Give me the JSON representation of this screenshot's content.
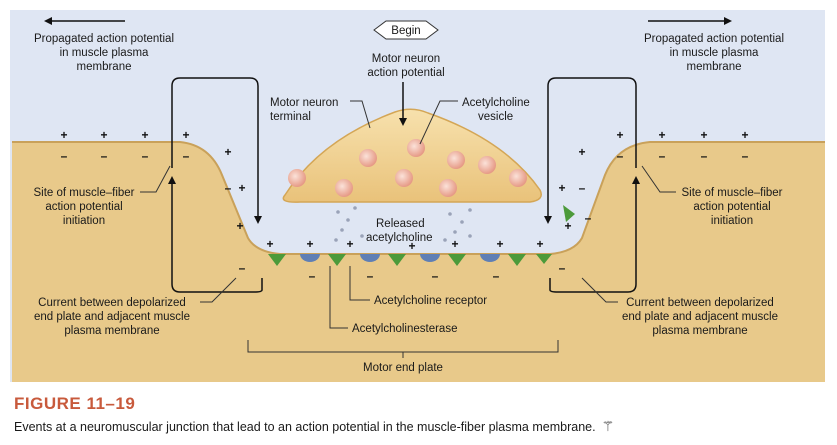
{
  "diagram": {
    "begin_label": "Begin",
    "motor_neuron_ap": [
      "Motor neuron",
      "action potential"
    ],
    "propagated_left": [
      "Propagated action potential",
      "in muscle plasma",
      "membrane"
    ],
    "propagated_right": [
      "Propagated action potential",
      "in muscle plasma",
      "membrane"
    ],
    "motor_neuron_terminal": [
      "Motor neuron",
      "terminal"
    ],
    "ach_vesicle": [
      "Acetylcholine",
      "vesicle"
    ],
    "site_left": [
      "Site of muscle–fiber",
      "action potential",
      "initiation"
    ],
    "site_right": [
      "Site of muscle–fiber",
      "action potential",
      "initiation"
    ],
    "released_ach": [
      "Released",
      "acetylcholine"
    ],
    "current_left": [
      "Current between depolarized",
      "end plate and adjacent muscle",
      "plasma membrane"
    ],
    "current_right": [
      "Current between depolarized",
      "end plate and adjacent muscle",
      "plasma membrane"
    ],
    "ach_receptor": "Acetylcholine receptor",
    "ach_esterase": "Acetylcholinesterase",
    "motor_end_plate": "Motor end plate",
    "plus_sign": "+",
    "minus_sign": "–",
    "colors": {
      "background": "#dfe6f3",
      "muscle": "#e8c98a",
      "terminal": "#f3d79a",
      "vesicle": "#f2b9a8",
      "receptor": "#5f7fb5",
      "esterase": "#4c9a3a",
      "caption_title": "#c85a3c"
    }
  },
  "caption": {
    "title": "FIGURE 11–19",
    "text": "Events at a neuromuscular junction that lead to an action potential in the muscle-fiber plasma membrane."
  }
}
